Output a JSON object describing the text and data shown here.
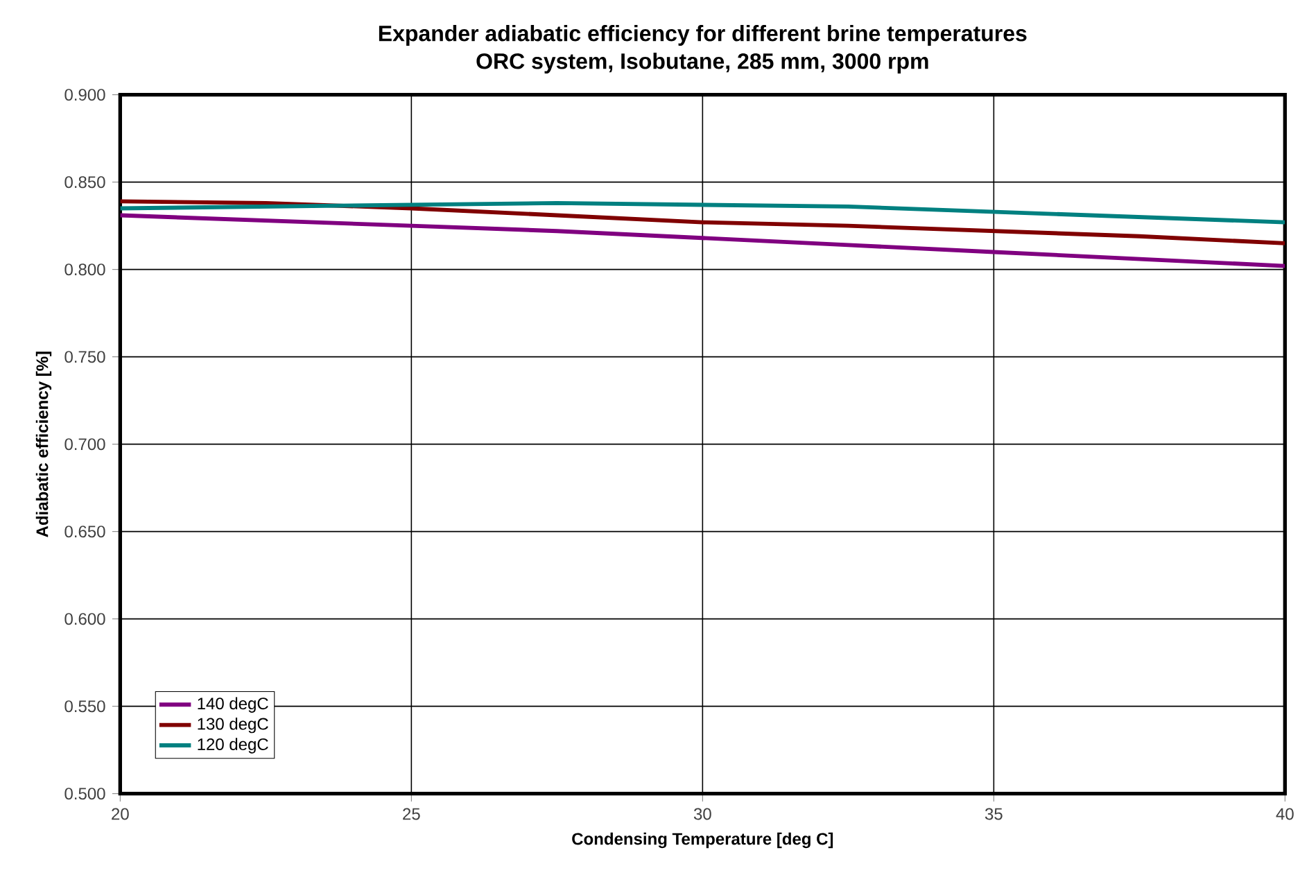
{
  "chart_data": {
    "type": "line",
    "title": "Expander adiabatic efficiency for different brine temperatures",
    "subtitle": "ORC system, Isobutane, 285 mm, 3000 rpm",
    "xlabel": "Condensing Temperature [deg C]",
    "ylabel": "Adiabatic efficiency [%]",
    "x": [
      20,
      22.5,
      25,
      27.5,
      30,
      32.5,
      35,
      37.5,
      40
    ],
    "series": [
      {
        "name": "140 degC",
        "color": "#800080",
        "values": [
          0.831,
          0.828,
          0.825,
          0.822,
          0.818,
          0.814,
          0.81,
          0.806,
          0.802
        ]
      },
      {
        "name": "130 degC",
        "color": "#800000",
        "values": [
          0.839,
          0.838,
          0.835,
          0.831,
          0.827,
          0.825,
          0.822,
          0.819,
          0.815
        ]
      },
      {
        "name": "120 degC",
        "color": "#008080",
        "values": [
          0.835,
          0.836,
          0.837,
          0.838,
          0.837,
          0.836,
          0.833,
          0.83,
          0.827
        ]
      }
    ],
    "xlim": [
      20,
      40
    ],
    "xticks": [
      20,
      25,
      30,
      35,
      40
    ],
    "ylim": [
      0.5,
      0.9
    ],
    "yticks": [
      {
        "value": 0.5,
        "label": "0.500"
      },
      {
        "value": 0.55,
        "label": "0.550"
      },
      {
        "value": 0.6,
        "label": "0.600"
      },
      {
        "value": 0.65,
        "label": "0.650"
      },
      {
        "value": 0.7,
        "label": "0.700"
      },
      {
        "value": 0.75,
        "label": "0.750"
      },
      {
        "value": 0.8,
        "label": "0.800"
      },
      {
        "value": 0.85,
        "label": "0.850"
      },
      {
        "value": 0.9,
        "label": "0.900"
      }
    ],
    "grid": true,
    "legend": "bottom left",
    "marker": "none",
    "line_style": "solid"
  }
}
